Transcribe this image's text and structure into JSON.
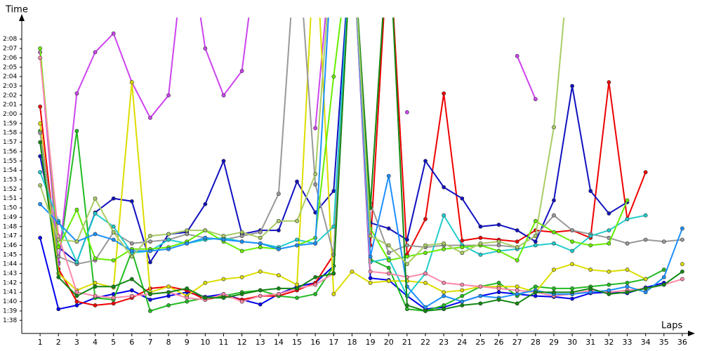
{
  "chart_data": {
    "type": "line",
    "y_label": "Time",
    "x_label": "Laps",
    "x": [
      1,
      2,
      3,
      4,
      5,
      6,
      7,
      8,
      9,
      10,
      11,
      12,
      13,
      14,
      15,
      16,
      17,
      18,
      19,
      20,
      21,
      22,
      23,
      24,
      25,
      26,
      27,
      28,
      29,
      30,
      31,
      32,
      33,
      34,
      35,
      36
    ],
    "xticks": [
      1,
      2,
      3,
      4,
      5,
      6,
      7,
      8,
      9,
      10,
      11,
      12,
      13,
      14,
      15,
      16,
      17,
      18,
      19,
      20,
      21,
      22,
      23,
      24,
      25,
      26,
      27,
      28,
      29,
      30,
      31,
      32,
      33,
      34,
      35,
      36
    ],
    "xlim": [
      0,
      36.5
    ],
    "ylim": [
      96.6,
      130.3
    ],
    "yticks": [
      {
        "value": 98,
        "label": "1:38"
      },
      {
        "value": 99,
        "label": "1:39"
      },
      {
        "value": 100,
        "label": "1:40"
      },
      {
        "value": 101,
        "label": "1:41"
      },
      {
        "value": 102,
        "label": "1:42"
      },
      {
        "value": 103,
        "label": "1:43"
      },
      {
        "value": 104,
        "label": "1:44"
      },
      {
        "value": 105,
        "label": "1:45"
      },
      {
        "value": 106,
        "label": "1:46"
      },
      {
        "value": 107,
        "label": "1:47"
      },
      {
        "value": 108,
        "label": "1:48"
      },
      {
        "value": 109,
        "label": "1:49"
      },
      {
        "value": 110,
        "label": "1:50"
      },
      {
        "value": 111,
        "label": "1:51"
      },
      {
        "value": 112,
        "label": "1:52"
      },
      {
        "value": 113,
        "label": "1:53"
      },
      {
        "value": 114,
        "label": "1:54"
      },
      {
        "value": 115,
        "label": "1:55"
      },
      {
        "value": 116,
        "label": "1:56"
      },
      {
        "value": 117,
        "label": "1:57"
      },
      {
        "value": 118,
        "label": "1:58"
      },
      {
        "value": 119,
        "label": "1:59"
      },
      {
        "value": 120,
        "label": "2:00"
      },
      {
        "value": 121,
        "label": "2:01"
      },
      {
        "value": 122,
        "label": "2:02"
      },
      {
        "value": 123,
        "label": "2:03"
      },
      {
        "value": 124,
        "label": "2:04"
      },
      {
        "value": 125,
        "label": "2:05"
      },
      {
        "value": 126,
        "label": "2:06"
      },
      {
        "value": 127,
        "label": "2:07"
      },
      {
        "value": 128,
        "label": "2:08"
      }
    ],
    "series": [
      {
        "color": "#0000ee",
        "values": [
          106.8,
          99.2,
          99.6,
          100.4,
          100.8,
          101.2,
          100.2,
          100.6,
          101,
          100.5,
          100.8,
          100.2,
          99.7,
          100.8,
          101.6,
          102,
          103.8,
          140,
          102.5,
          102.3,
          100.6,
          99.2,
          99.4,
          100,
          100.6,
          101,
          100.8,
          100.6,
          100.5,
          100.3,
          100.9,
          101,
          100.9,
          101.5,
          102,
          null
        ]
      },
      {
        "color": "#ee0000",
        "values": [
          120.8,
          103.5,
          100,
          99.6,
          99.8,
          100.4,
          101.4,
          101.6,
          101.2,
          100.2,
          100.6,
          100.2,
          100.6,
          100.6,
          101.2,
          102,
          105,
          140,
          106,
          139.5,
          105,
          108.8,
          122.2,
          106.5,
          106.8,
          106.6,
          106.4,
          107.6,
          107.4,
          107.6,
          106.8,
          123.4,
          108.8,
          113.8,
          null,
          null
        ]
      },
      {
        "color": "#1010c0",
        "values": [
          115.5,
          105.8,
          104.2,
          109.5,
          111,
          110.7,
          104.2,
          107.2,
          107.4,
          110.4,
          115,
          107.2,
          107.6,
          107.6,
          112.8,
          109.5,
          111.8,
          140,
          108.4,
          107.8,
          106.6,
          115,
          112.2,
          111,
          108,
          108.2,
          107.6,
          106.4,
          110.8,
          123,
          111.8,
          109.4,
          110.6,
          null,
          null,
          null
        ]
      },
      {
        "color": "#22bb22",
        "values": [
          118.2,
          104.2,
          118.2,
          100.4,
          100.2,
          105.4,
          99,
          99.6,
          100,
          100.4,
          100.6,
          101,
          101.2,
          100.6,
          100.4,
          100.8,
          103.8,
          140,
          104.5,
          103.6,
          99.2,
          99,
          99.6,
          100.6,
          101.6,
          102,
          100.6,
          101.6,
          101.4,
          101.4,
          101.6,
          101.8,
          102,
          102.4,
          103.4,
          null
        ]
      },
      {
        "color": "#cc44ee",
        "values": [
          126.6,
          104,
          122.2,
          126.6,
          128.6,
          123.4,
          119.6,
          122,
          140,
          127,
          122,
          124.6,
          140,
          null,
          null,
          118.5,
          140,
          null,
          null,
          null,
          120.2,
          null,
          null,
          null,
          null,
          null,
          126.2,
          121.6,
          null,
          null,
          null,
          null,
          null,
          null,
          null,
          null
        ]
      },
      {
        "color": "#dddd00",
        "values": [
          119,
          103,
          101.2,
          102,
          101.5,
          123.4,
          101,
          101.6,
          100.6,
          102,
          102.4,
          102.6,
          103.2,
          102.8,
          101.8,
          140,
          100.8,
          103.2,
          102,
          102.2,
          102.2,
          102,
          101,
          101.2,
          101.6,
          101.6,
          101.6,
          101,
          103.4,
          104,
          103.4,
          103.2,
          103.4,
          102.4,
          null,
          104
        ]
      },
      {
        "color": "#999999",
        "values": [
          118,
          104.8,
          104,
          104.4,
          107.4,
          106.2,
          106.4,
          106.6,
          107.2,
          106.8,
          106.6,
          107,
          107.4,
          111.5,
          140,
          112.5,
          105,
          140,
          110.5,
          105.2,
          106,
          105.8,
          106,
          106,
          106,
          106,
          105.8,
          107,
          109.2,
          107.6,
          107.2,
          106.8,
          106.2,
          106.6,
          106.4,
          106.6
        ]
      },
      {
        "color": "#22cccc",
        "values": [
          113.8,
          108.6,
          104.2,
          109.4,
          108,
          105.2,
          105.4,
          106.6,
          106.2,
          106.6,
          106.8,
          106.4,
          106.2,
          105.8,
          106.6,
          106.2,
          108,
          140,
          104.2,
          104.6,
          100.6,
          103,
          109.2,
          106,
          105,
          105.4,
          105.6,
          106,
          106.2,
          105.4,
          107,
          107.6,
          108.8,
          109.2,
          null,
          null
        ]
      },
      {
        "color": "#66ee00",
        "values": [
          127,
          105.8,
          109.8,
          104.6,
          104.4,
          105.6,
          105.6,
          105.8,
          106.4,
          107.6,
          106.4,
          105.4,
          105.8,
          105.6,
          106,
          106.8,
          124,
          140,
          107.8,
          104.4,
          104.8,
          105.2,
          105.6,
          105.8,
          106,
          105.4,
          104.4,
          108.6,
          107.4,
          106.4,
          106,
          106.2,
          110.8,
          null,
          null,
          null
        ]
      },
      {
        "color": "#ff88aa",
        "values": [
          126,
          107,
          101,
          100.6,
          100.4,
          100.6,
          100.8,
          101,
          100.4,
          100.2,
          100.8,
          100,
          100.6,
          100.8,
          101.4,
          101.8,
          103,
          140,
          103.2,
          103,
          102.6,
          103,
          102,
          101.8,
          101.6,
          101.4,
          101.2,
          101,
          100.6,
          100.8,
          101.2,
          101,
          101.2,
          101.4,
          101.8,
          102.4
        ]
      },
      {
        "color": "#1e90ff",
        "values": [
          110.4,
          108.4,
          106.4,
          107.2,
          106.6,
          105.4,
          105.4,
          105.6,
          106.2,
          106.8,
          106.6,
          106.4,
          106.2,
          105.6,
          106,
          106.2,
          140,
          140,
          104.8,
          113.4,
          101.6,
          99.4,
          100.6,
          100,
          100.6,
          100.4,
          100.8,
          101.2,
          100.8,
          100.8,
          101,
          101.2,
          101.6,
          101,
          102.6,
          107.8
        ]
      },
      {
        "color": "#118811",
        "values": [
          117,
          102.6,
          100.6,
          101.6,
          101.6,
          102.4,
          100.8,
          101,
          101.4,
          100.4,
          100.4,
          100.8,
          101.2,
          101.4,
          101.4,
          102.6,
          103,
          140,
          110,
          140,
          99.6,
          99,
          99.2,
          99.6,
          99.8,
          100.2,
          99.8,
          101,
          101,
          101,
          101.4,
          100.8,
          101,
          101.4,
          101.8,
          103.2
        ]
      },
      {
        "color": "#aacc66",
        "values": [
          112.4,
          106.6,
          106.4,
          111,
          107.4,
          104.8,
          107,
          107.2,
          107.6,
          107.6,
          107,
          107.4,
          106.8,
          108.6,
          108.6,
          113.6,
          140,
          140,
          107,
          106,
          104,
          106,
          106.2,
          105.2,
          106.2,
          106.4,
          105.8,
          107,
          118.6,
          140,
          null,
          null,
          null,
          null,
          null,
          null
        ]
      }
    ]
  }
}
